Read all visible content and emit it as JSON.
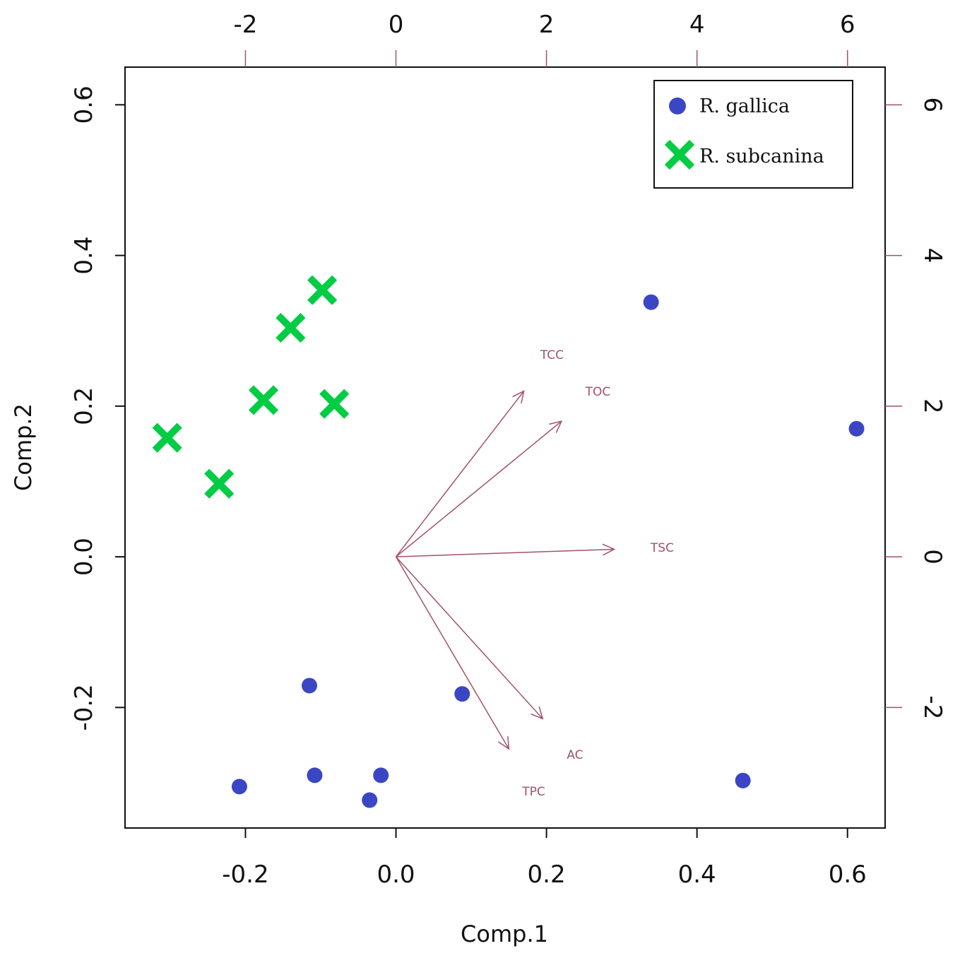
{
  "colors": {
    "gallica": "#3b46c4",
    "subcanina": "#00cc44",
    "arrows": "#a0526e",
    "axis": "#111111",
    "secondary_axis": "#a0526e"
  },
  "chart_data": {
    "type": "scatter",
    "title": "",
    "xlabel": "Comp.1",
    "ylabel": "Comp.2",
    "xlim": [
      -0.36,
      0.65
    ],
    "ylim": [
      -0.36,
      0.65
    ],
    "x_ticks": [
      "-0.2",
      "0.0",
      "0.2",
      "0.4",
      "0.6"
    ],
    "y_ticks": [
      "-0.2",
      "0.0",
      "0.2",
      "0.4",
      "0.6"
    ],
    "secondary_xlim": [
      -3.6,
      6.5
    ],
    "secondary_ylim": [
      -3.6,
      6.5
    ],
    "top_ticks": [
      "-2",
      "0",
      "2",
      "4",
      "6"
    ],
    "right_ticks": [
      "-2",
      "0",
      "2",
      "4",
      "6"
    ],
    "legend_position": "top-right",
    "series": [
      {
        "name": "R. gallica",
        "marker": "circle",
        "points": [
          {
            "x": 0.339,
            "y": 0.338
          },
          {
            "x": 0.612,
            "y": 0.17
          },
          {
            "x": -0.115,
            "y": -0.171
          },
          {
            "x": 0.088,
            "y": -0.182
          },
          {
            "x": -0.208,
            "y": -0.305
          },
          {
            "x": -0.108,
            "y": -0.29
          },
          {
            "x": -0.02,
            "y": -0.29
          },
          {
            "x": -0.035,
            "y": -0.323
          },
          {
            "x": 0.461,
            "y": -0.297
          }
        ]
      },
      {
        "name": "R. subcanina",
        "marker": "cross",
        "points": [
          {
            "x": -0.098,
            "y": 0.354
          },
          {
            "x": -0.14,
            "y": 0.304
          },
          {
            "x": -0.176,
            "y": 0.208
          },
          {
            "x": -0.082,
            "y": 0.203
          },
          {
            "x": -0.304,
            "y": 0.158
          },
          {
            "x": -0.235,
            "y": 0.097
          }
        ]
      }
    ],
    "loadings": [
      {
        "name": "TCC",
        "x": 1.7,
        "y": 2.2
      },
      {
        "name": "TOC",
        "x": 2.2,
        "y": 1.8
      },
      {
        "name": "TSC",
        "x": 2.9,
        "y": 0.1
      },
      {
        "name": "AC",
        "x": 1.95,
        "y": -2.15
      },
      {
        "name": "TPC",
        "x": 1.5,
        "y": -2.55
      }
    ]
  }
}
